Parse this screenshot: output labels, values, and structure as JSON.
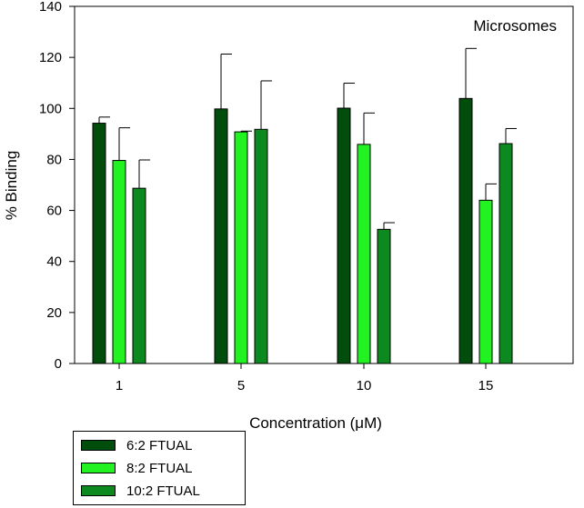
{
  "chart_data": {
    "type": "bar",
    "title": "Microsomes",
    "xlabel": "Concentration (μM)",
    "ylabel": "% Binding",
    "categories": [
      "1",
      "5",
      "10",
      "15"
    ],
    "ylim": [
      0,
      140
    ],
    "yticks": [
      0,
      20,
      40,
      60,
      80,
      100,
      120,
      140
    ],
    "grid": false,
    "legend_position": "bottom-left",
    "series": [
      {
        "name": "6:2 FTUAL",
        "color": "#004d0c",
        "values": [
          94.2,
          99.8,
          100.1,
          103.9
        ],
        "errors": [
          2.4,
          21.5,
          9.8,
          19.6
        ]
      },
      {
        "name": "8:2 FTUAL",
        "color": "#22f222",
        "values": [
          79.6,
          90.8,
          85.9,
          64.0
        ],
        "errors": [
          12.8,
          0.3,
          12.3,
          6.4
        ]
      },
      {
        "name": "10:2 FTUAL",
        "color": "#0d8a1f",
        "values": [
          68.7,
          91.8,
          52.6,
          86.2
        ],
        "errors": [
          11.1,
          19.0,
          2.6,
          5.9
        ]
      }
    ]
  }
}
